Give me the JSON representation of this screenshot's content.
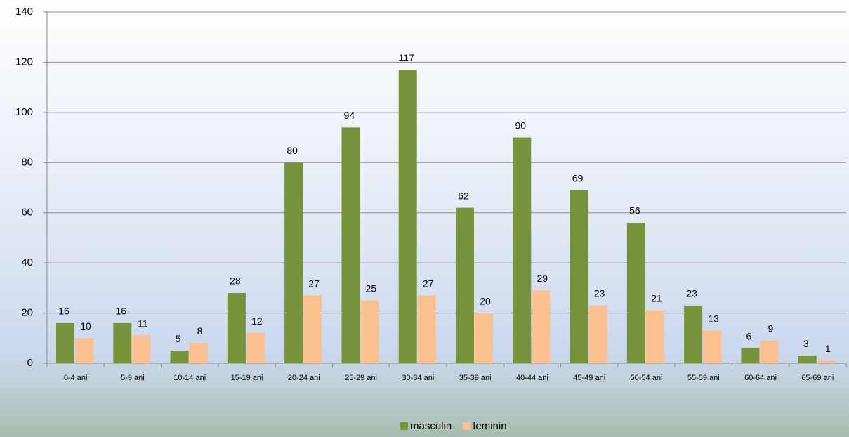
{
  "chart_data": {
    "type": "bar",
    "categories": [
      "0-4 ani",
      "5-9 ani",
      "10-14 ani",
      "15-19 ani",
      "20-24 ani",
      "25-29 ani",
      "30-34 ani",
      "35-39 ani",
      "40-44 ani",
      "45-49 ani",
      "50-54 ani",
      "55-59 ani",
      "60-64 ani",
      "65-69 ani"
    ],
    "series": [
      {
        "name": "masculin",
        "color": "#77933c",
        "values": [
          16,
          16,
          5,
          28,
          80,
          94,
          117,
          62,
          90,
          69,
          56,
          23,
          6,
          3
        ]
      },
      {
        "name": "feminin",
        "color": "#fac090",
        "values": [
          10,
          11,
          8,
          12,
          27,
          25,
          27,
          20,
          29,
          23,
          21,
          13,
          9,
          1
        ]
      }
    ],
    "ylim": [
      0,
      140
    ],
    "yticks": [
      0,
      20,
      40,
      60,
      80,
      100,
      120,
      140
    ],
    "grid": true,
    "legend": "bottom"
  }
}
